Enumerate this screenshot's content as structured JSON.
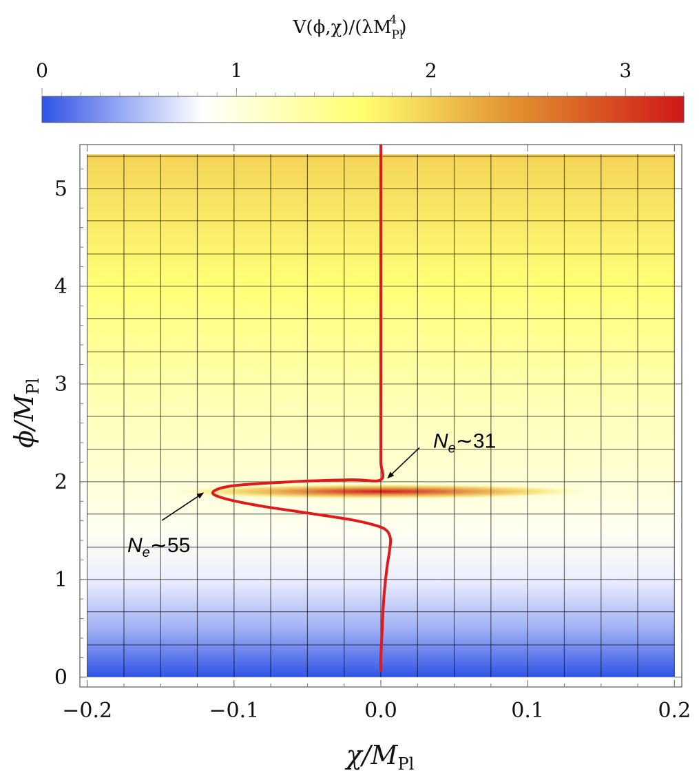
{
  "chart_data": {
    "type": "heatmap",
    "title": "",
    "colorbar": {
      "label_main": "V(ϕ,χ)/(λM",
      "label_sup": "4",
      "label_sub": "Pl",
      "label_end": ")",
      "range": [
        0,
        3.3
      ],
      "ticks": [
        0,
        1,
        2,
        3
      ],
      "tick_labels": [
        "0",
        "1",
        "2",
        "3"
      ],
      "colormap": [
        "#3054e6",
        "#ffffff",
        "#ffff6e",
        "#e08a2e",
        "#d01818"
      ],
      "position": "top"
    },
    "xlabel": {
      "main": "χ/M",
      "sub": "Pl"
    },
    "ylabel": {
      "main": "ϕ/M",
      "sub": "Pl"
    },
    "xlim": [
      -0.205,
      0.205
    ],
    "ylim": [
      -0.1,
      5.45
    ],
    "xticks": [
      -0.2,
      -0.1,
      0.0,
      0.1,
      0.2
    ],
    "xtick_labels": [
      "−0.2",
      "−0.1",
      "0.0",
      "0.1",
      "0.2"
    ],
    "yticks": [
      0,
      1,
      2,
      3,
      4,
      5
    ],
    "ytick_labels": [
      "0",
      "1",
      "2",
      "3",
      "4",
      "5"
    ],
    "field_extent": {
      "x": [
        -0.2,
        0.2
      ],
      "y": [
        0.0,
        5.35
      ]
    },
    "field_profile": [
      {
        "phi": 0.0,
        "V": 0.0
      },
      {
        "phi": 0.5,
        "V": 0.45
      },
      {
        "phi": 1.0,
        "V": 0.75
      },
      {
        "phi": 1.5,
        "V": 0.9
      },
      {
        "phi": 2.0,
        "V": 1.05
      },
      {
        "phi": 3.0,
        "V": 1.3
      },
      {
        "phi": 4.0,
        "V": 1.6
      },
      {
        "phi": 5.35,
        "V": 1.95
      }
    ],
    "bump": {
      "chi": 0.0,
      "phi": 1.9,
      "peak": 3.3,
      "sigma_chi": 0.035,
      "sigma_phi": 0.035
    },
    "grid": true,
    "grid_x_count": 17,
    "grid_y": [
      0.33,
      0.67,
      1.33,
      1.67,
      2.33,
      2.67,
      3.33,
      3.67,
      4.33,
      4.67,
      5.33
    ],
    "trajectory": {
      "name": "",
      "color": "#e01a1a",
      "x": [
        0.0,
        0.0,
        0.0,
        0.0,
        0.0,
        0.0,
        -0.02,
        -0.06,
        -0.1,
        -0.114,
        -0.109,
        -0.085,
        -0.05,
        -0.02,
        -0.003,
        0.004,
        0.0065,
        0.006,
        0.004,
        0.002,
        0.001,
        0.0,
        0.0
      ],
      "y": [
        5.6,
        4.0,
        3.0,
        2.5,
        2.2,
        2.02,
        2.02,
        2.0,
        1.96,
        1.9,
        1.84,
        1.76,
        1.68,
        1.61,
        1.55,
        1.5,
        1.42,
        1.3,
        1.1,
        0.8,
        0.5,
        0.2,
        0.07
      ]
    },
    "annotations": [
      {
        "id": "ne31",
        "n": "N",
        "sub": "e",
        "rest": "∼31",
        "arrow_to": {
          "x": 0.0,
          "y": 2.01
        }
      },
      {
        "id": "ne55",
        "n": "N",
        "sub": "e",
        "rest": "∼55",
        "arrow_to": {
          "x": -0.12,
          "y": 1.9
        }
      }
    ]
  }
}
